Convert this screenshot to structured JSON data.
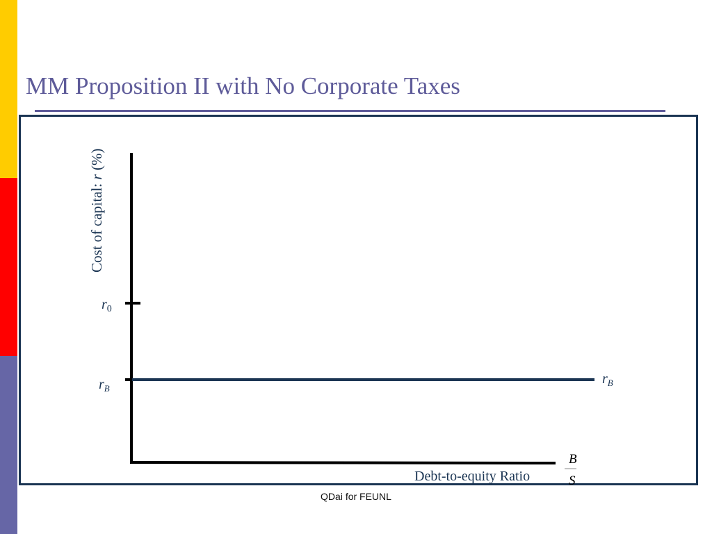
{
  "slide": {
    "title": "MM Proposition II with No Corporate Taxes",
    "footer": "QDai for FEUNL"
  },
  "diagram": {
    "y_axis_label": "Cost of capital: ",
    "y_axis_label_italic": "r",
    "y_axis_label_suffix": " (%)",
    "x_axis_label": "Debt-to-equity Ratio",
    "x_axis_fraction": {
      "numerator": "B",
      "denominator": "S"
    },
    "tick_r0": {
      "symbol": "r",
      "subscript": "0"
    },
    "tick_rB": {
      "symbol": "r",
      "subscript": "B"
    },
    "line_rB_label": {
      "symbol": "r",
      "subscript": "B"
    }
  },
  "colors": {
    "accent_title": "#5e5b99",
    "frame_and_line": "#1b3553",
    "axis": "#000000",
    "bar_yellow": "#ffcc00",
    "bar_red": "#ff0000",
    "bar_purple": "#6666a6"
  }
}
